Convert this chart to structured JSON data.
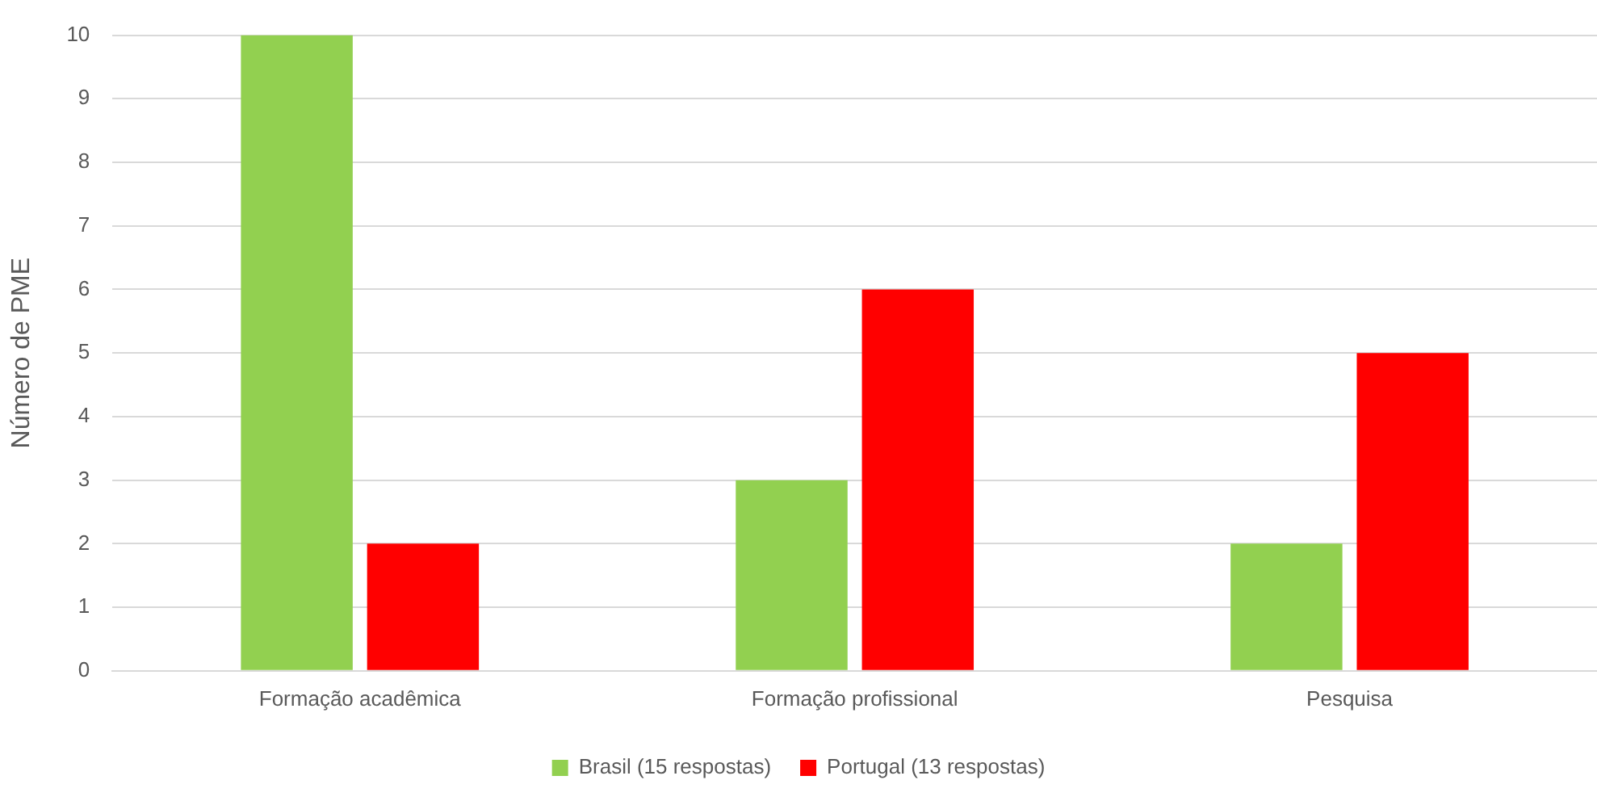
{
  "chart_data": {
    "type": "bar",
    "ylabel": "Número de PME",
    "categories": [
      "Formação acadêmica",
      "Formação profissional",
      "Pesquisa"
    ],
    "series": [
      {
        "name": "Brasil (15 respostas)",
        "color": "#92d050",
        "values": [
          10,
          3,
          2
        ]
      },
      {
        "name": "Portugal (13 respostas)",
        "color": "#ff0000",
        "values": [
          2,
          6,
          5
        ]
      }
    ],
    "ylim": [
      0,
      10
    ],
    "yticks": [
      0,
      1,
      2,
      3,
      4,
      5,
      6,
      7,
      8,
      9,
      10
    ],
    "grid": "y",
    "legend": "bottom"
  }
}
